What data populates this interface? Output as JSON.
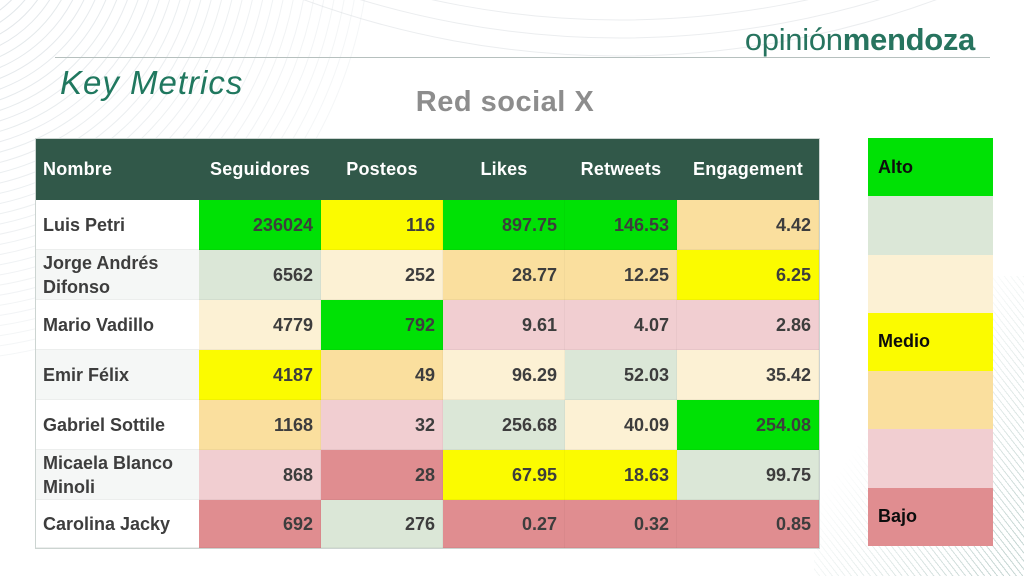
{
  "logo": {
    "prefix": "opinión",
    "suffix": "mendoza"
  },
  "header": {
    "page_title": "Key Metrics"
  },
  "main": {
    "table_title": "Red social X"
  },
  "chart_data": {
    "type": "table",
    "title": "Red social X",
    "columns": [
      "Nombre",
      "Seguidores",
      "Posteos",
      "Likes",
      "Retweets",
      "Engagement"
    ],
    "rows": [
      {
        "name": "Luis Petri",
        "values": [
          "236024",
          "116",
          "897.75",
          "146.53",
          "4.42"
        ],
        "levels": [
          "green",
          "yellow",
          "green",
          "green",
          "tan"
        ]
      },
      {
        "name": "Jorge Andrés Difonso",
        "values": [
          "6562",
          "252",
          "28.77",
          "12.25",
          "6.25"
        ],
        "levels": [
          "graygreen",
          "cream",
          "tan",
          "tan",
          "yellow"
        ]
      },
      {
        "name": "Mario Vadillo",
        "values": [
          "4779",
          "792",
          "9.61",
          "4.07",
          "2.86"
        ],
        "levels": [
          "cream",
          "green",
          "pink",
          "pink",
          "pink"
        ]
      },
      {
        "name": "Emir Félix",
        "values": [
          "4187",
          "49",
          "96.29",
          "52.03",
          "35.42"
        ],
        "levels": [
          "yellow",
          "tan",
          "cream",
          "graygreen",
          "cream"
        ]
      },
      {
        "name": "Gabriel Sottile",
        "values": [
          "1168",
          "32",
          "256.68",
          "40.09",
          "254.08"
        ],
        "levels": [
          "tan",
          "pink",
          "graygreen",
          "cream",
          "green"
        ]
      },
      {
        "name": "Micaela Blanco Minoli",
        "values": [
          "868",
          "28",
          "67.95",
          "18.63",
          "99.75"
        ],
        "levels": [
          "pink",
          "rose",
          "yellow",
          "yellow",
          "graygreen"
        ]
      },
      {
        "name": "Carolina Jacky",
        "values": [
          "692",
          "276",
          "0.27",
          "0.32",
          "0.85"
        ],
        "levels": [
          "rose",
          "graygreen",
          "rose",
          "rose",
          "rose"
        ]
      }
    ],
    "legend": [
      {
        "label": "Alto",
        "level": "green"
      },
      {
        "label": "",
        "level": "graygreen"
      },
      {
        "label": "",
        "level": "cream"
      },
      {
        "label": "Medio",
        "level": "yellow"
      },
      {
        "label": "",
        "level": "tan"
      },
      {
        "label": "",
        "level": "pink"
      },
      {
        "label": "Bajo",
        "level": "rose"
      }
    ]
  },
  "colors": {
    "green": "#00e105",
    "yellow": "#fbfb00",
    "graygreen": "#dbe7d7",
    "cream": "#fcf1d4",
    "tan": "#fadf9e",
    "pink": "#f1ced1",
    "rose": "#e08d90",
    "header_bg": "#315849",
    "header_text": "#ffffff",
    "value_text": "#3d3d3d",
    "accent_teal": "#27745f",
    "title_gray": "#8d8d8d"
  }
}
